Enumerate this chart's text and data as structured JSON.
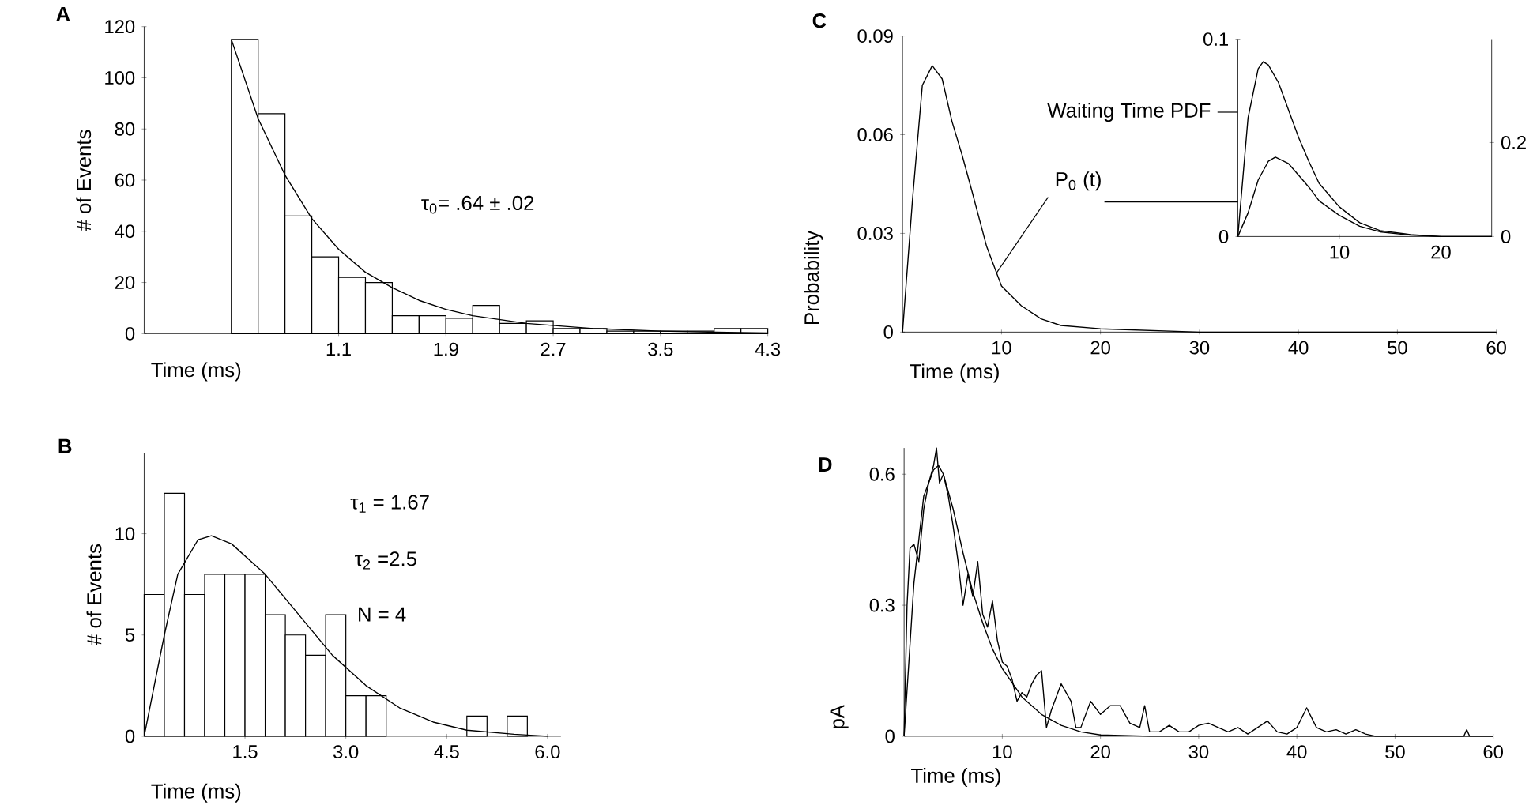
{
  "chart_data": [
    {
      "type": "histogram",
      "title": "A",
      "xlabel": "Time (ms)",
      "ylabel": "# of Events",
      "color": "#ffffff",
      "bins": [
        0.3,
        0.5,
        0.7,
        0.9,
        1.1,
        1.3,
        1.5,
        1.7,
        1.9,
        2.1,
        2.3,
        2.5,
        2.7,
        2.9,
        3.1,
        3.3,
        3.5,
        3.7,
        3.9,
        4.1,
        4.3
      ],
      "values": [
        115,
        86,
        46,
        30,
        22,
        20,
        7,
        7,
        6,
        11,
        4,
        5,
        2,
        2,
        1,
        1,
        1,
        1,
        2,
        2
      ],
      "xlim": [
        -0.35,
        4.3
      ],
      "ylim": [
        0,
        120
      ],
      "xticks": [
        1.1,
        1.9,
        2.7,
        3.5,
        4.3
      ],
      "yticks": [
        0,
        20,
        40,
        60,
        80,
        100,
        120
      ],
      "annotations": [
        "τ$_{0}$= .64 ± .02"
      ],
      "series": [
        {
          "type": "line",
          "color": "#000000",
          "x": [
            0.3,
            0.5,
            0.7,
            0.9,
            1.1,
            1.3,
            1.5,
            1.7,
            1.9,
            2.1,
            2.5,
            3.0,
            3.5,
            4.0,
            4.3
          ],
          "values": [
            115,
            84,
            62,
            45,
            33,
            24,
            18,
            13,
            9.5,
            7,
            4,
            2,
            1,
            0.5,
            0.3
          ]
        }
      ]
    },
    {
      "type": "histogram",
      "title": "B",
      "xlabel": "Time (ms)",
      "ylabel": "# of Events",
      "color": "#ffffff",
      "bins": [
        0,
        0.3,
        0.6,
        0.9,
        1.2,
        1.5,
        1.8,
        2.1,
        2.4,
        2.7,
        3.0,
        3.3,
        3.6,
        3.9,
        4.2,
        4.5,
        4.8,
        5.1,
        5.4,
        5.7
      ],
      "values": [
        7,
        12,
        7,
        8,
        8,
        8,
        6,
        5,
        4,
        6,
        2,
        2,
        0,
        0,
        0,
        0,
        1,
        0,
        1
      ],
      "xlim": [
        0,
        6.2
      ],
      "ylim": [
        0,
        14
      ],
      "xticks": [
        1.5,
        {
          "value": 3,
          "label": "3.0"
        },
        4.5,
        {
          "value": 6,
          "label": "6.0"
        }
      ],
      "yticks": [
        0,
        5,
        10
      ],
      "annotations": [
        "τ$_{1}$ = 1.67",
        "τ$_{2}$ =2.5",
        "N = 4"
      ],
      "series": [
        {
          "type": "line",
          "color": "#000000",
          "x": [
            0,
            0.3,
            0.5,
            0.8,
            1.0,
            1.3,
            1.8,
            2.3,
            2.8,
            3.3,
            3.8,
            4.3,
            4.8,
            5.5,
            6.0
          ],
          "values": [
            0,
            5,
            8,
            9.7,
            9.9,
            9.5,
            8,
            6,
            4,
            2.5,
            1.4,
            0.7,
            0.3,
            0.1,
            0
          ]
        }
      ]
    },
    {
      "type": "line",
      "title": "C",
      "xlabel": "Time (ms)",
      "ylabel": "Probability",
      "xlim": [
        0,
        60
      ],
      "ylim": [
        0,
        0.09
      ],
      "xticks": [
        10,
        20,
        30,
        40,
        50,
        60
      ],
      "yticks": [
        0,
        0.03,
        0.06,
        0.09
      ],
      "annotations": [
        {
          "text": "P$_{0}$ (t)",
          "x": 9.5,
          "y": 0.018
        }
      ],
      "series": [
        {
          "color": "#000000",
          "x": [
            0,
            1,
            2,
            3,
            4,
            5,
            6,
            7,
            8.5,
            10,
            12,
            14,
            16,
            20,
            30,
            60
          ],
          "values": [
            0,
            0.04,
            0.075,
            0.081,
            0.077,
            0.064,
            0.054,
            0.043,
            0.026,
            0.014,
            0.008,
            0.004,
            0.002,
            0.001,
            0,
            0
          ]
        }
      ]
    },
    {
      "type": "line",
      "annotations": [
        "Waiting Time PDF"
      ],
      "xlim": [
        0,
        25
      ],
      "ylim": [
        0,
        0.1
      ],
      "xticks": [
        10,
        20
      ],
      "yticks": [
        0,
        0.1
      ],
      "y2lim": [
        0,
        0.42
      ],
      "y2ticks": [
        0,
        0.2
      ],
      "series": [
        {
          "color": "#000000",
          "x": [
            0,
            1,
            2,
            2.5,
            3,
            4,
            5,
            6,
            7,
            8,
            10,
            12,
            14,
            17,
            20,
            25
          ],
          "values": [
            0,
            0.06,
            0.085,
            0.0886,
            0.087,
            0.078,
            0.064,
            0.05,
            0.038,
            0.027,
            0.015,
            0.007,
            0.003,
            0.001,
            0,
            0
          ]
        },
        {
          "color": "#000000",
          "axis": "y2",
          "x": [
            0,
            1,
            2,
            3,
            3.7,
            5,
            6,
            7,
            8,
            10,
            12,
            14,
            17,
            20,
            25
          ],
          "values": [
            0,
            0.05,
            0.12,
            0.16,
            0.169,
            0.155,
            0.13,
            0.105,
            0.076,
            0.045,
            0.022,
            0.01,
            0.003,
            0,
            0
          ]
        }
      ]
    },
    {
      "type": "line",
      "title": "D",
      "xlabel": "Time (ms)",
      "ylabel": "pA",
      "xlim": [
        0,
        60
      ],
      "ylim": [
        0,
        0.66
      ],
      "xticks": [
        10,
        20,
        30,
        40,
        50,
        60
      ],
      "yticks": [
        0,
        0.3,
        0.6
      ],
      "series": [
        {
          "color": "#000000",
          "x": [
            0,
            0.3,
            0.6,
            1,
            1.5,
            2,
            2.5,
            3,
            3.3,
            3.6,
            4,
            4.5,
            5,
            5.5,
            6,
            6.5,
            7,
            7.5,
            8,
            8.5,
            9,
            9.5,
            10,
            10.5,
            11,
            11.5,
            12,
            12.5,
            13,
            13.5,
            14,
            14.5,
            15,
            16,
            17,
            17.5,
            18,
            19,
            20,
            21,
            22,
            23,
            24,
            24.5,
            25,
            26,
            27,
            28,
            29,
            30,
            31,
            32,
            33,
            34,
            35,
            36,
            37,
            38,
            39,
            40,
            41,
            42,
            43,
            44,
            45,
            46,
            47,
            48,
            57,
            57.3,
            57.6,
            60
          ],
          "values": [
            0,
            0.3,
            0.43,
            0.44,
            0.4,
            0.52,
            0.58,
            0.62,
            0.66,
            0.58,
            0.6,
            0.55,
            0.48,
            0.4,
            0.3,
            0.37,
            0.32,
            0.4,
            0.28,
            0.25,
            0.31,
            0.22,
            0.17,
            0.16,
            0.13,
            0.08,
            0.1,
            0.09,
            0.12,
            0.14,
            0.15,
            0.02,
            0.06,
            0.12,
            0.08,
            0.02,
            0.02,
            0.08,
            0.05,
            0.07,
            0.07,
            0.03,
            0.02,
            0.07,
            0.01,
            0.01,
            0.025,
            0.01,
            0.01,
            0.025,
            0.03,
            0.02,
            0.01,
            0.02,
            0.005,
            0.02,
            0.035,
            0.01,
            0.005,
            0.02,
            0.065,
            0.02,
            0.01,
            0.015,
            0.005,
            0.015,
            0.005,
            0,
            0,
            0.015,
            0,
            0
          ]
        },
        {
          "color": "#000000",
          "x": [
            0,
            1,
            2,
            3,
            3.5,
            4,
            5,
            6,
            7,
            8,
            9,
            10,
            12,
            14,
            16,
            18,
            20,
            25,
            60
          ],
          "values": [
            0,
            0.35,
            0.55,
            0.61,
            0.62,
            0.6,
            0.52,
            0.42,
            0.33,
            0.26,
            0.2,
            0.155,
            0.09,
            0.05,
            0.025,
            0.01,
            0.003,
            0,
            0
          ]
        }
      ]
    }
  ]
}
